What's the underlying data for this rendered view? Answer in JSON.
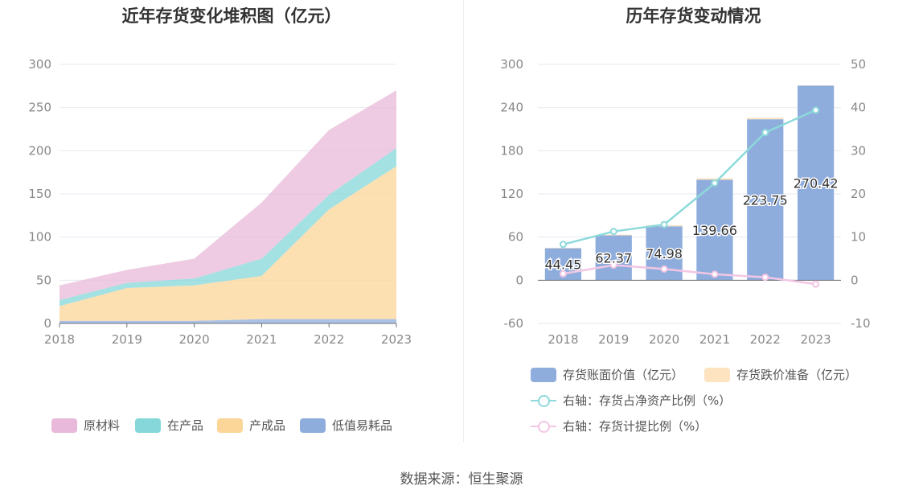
{
  "left_chart": {
    "title": "近年存货变化堆积图（亿元）",
    "legend": [
      {
        "label": "原材料",
        "color": "#e8b9da"
      },
      {
        "label": "在产品",
        "color": "#86d7d9"
      },
      {
        "label": "产成品",
        "color": "#fcd598"
      },
      {
        "label": "低值易耗品",
        "color": "#8faddc"
      }
    ]
  },
  "right_chart": {
    "title": "历年存货变动情况",
    "legend": [
      {
        "label": "存货账面价值（亿元）",
        "color": "#8faddc"
      },
      {
        "label": "存货跌价准备（亿元）",
        "color": "#fde3bf"
      },
      {
        "label": "右轴：存货占净资产比例（%）",
        "color": "#8dd9db"
      },
      {
        "label": "右轴：存货计提比例（%）",
        "color": "#f2c6e4"
      }
    ]
  },
  "footer": "数据来源：恒生聚源",
  "chart_data": [
    {
      "type": "area",
      "title": "近年存货变化堆积图（亿元）",
      "stacked": true,
      "x": [
        "2018",
        "2019",
        "2020",
        "2021",
        "2022",
        "2023"
      ],
      "ylim": [
        0,
        300
      ],
      "yticks": [
        0,
        50,
        100,
        150,
        200,
        250,
        300
      ],
      "grid": true,
      "legend_position": "bottom",
      "series": [
        {
          "name": "低值易耗品",
          "color": "#8faddc",
          "values": [
            3,
            3,
            3,
            5,
            5,
            5
          ]
        },
        {
          "name": "产成品",
          "color": "#fcd598",
          "values": [
            17,
            38,
            41,
            50,
            127,
            177
          ]
        },
        {
          "name": "在产品",
          "color": "#86d7d9",
          "values": [
            7,
            6,
            8,
            20,
            17,
            21
          ]
        },
        {
          "name": "原材料",
          "color": "#e8b9da",
          "values": [
            17,
            15,
            23,
            65,
            75,
            67
          ]
        }
      ]
    },
    {
      "type": "bar",
      "title": "历年存货变动情况",
      "categories": [
        "2018",
        "2019",
        "2020",
        "2021",
        "2022",
        "2023"
      ],
      "ylim": [
        -60,
        300
      ],
      "yticks": [
        -60,
        0,
        60,
        120,
        180,
        240,
        300
      ],
      "y2lim": [
        -10,
        50
      ],
      "y2ticks": [
        -10,
        0,
        10,
        20,
        30,
        40,
        50
      ],
      "grid": true,
      "legend_position": "bottom",
      "series": [
        {
          "name": "存货账面价值（亿元）",
          "type": "bar",
          "axis": "left",
          "color": "#8faddc",
          "values": [
            44.45,
            62.37,
            74.98,
            139.66,
            223.75,
            270.42
          ],
          "labels": [
            "44.45",
            "62.37",
            "74.98",
            "139.66",
            "223.75",
            "270.42"
          ]
        },
        {
          "name": "存货跌价准备（亿元）",
          "type": "bar",
          "axis": "left",
          "color": "#fde3bf",
          "values": [
            0.5,
            1.0,
            1.5,
            2.0,
            2.0,
            0.5
          ]
        },
        {
          "name": "右轴：存货占净资产比例（%）",
          "type": "line",
          "axis": "right",
          "color": "#8dd9db",
          "values": [
            8.3,
            11.3,
            12.9,
            22.5,
            34.2,
            39.4
          ]
        },
        {
          "name": "右轴：存货计提比例（%）",
          "type": "line",
          "axis": "right",
          "color": "#f2c6e4",
          "values": [
            1.5,
            3.5,
            2.6,
            1.4,
            0.7,
            -0.9
          ]
        }
      ]
    }
  ]
}
